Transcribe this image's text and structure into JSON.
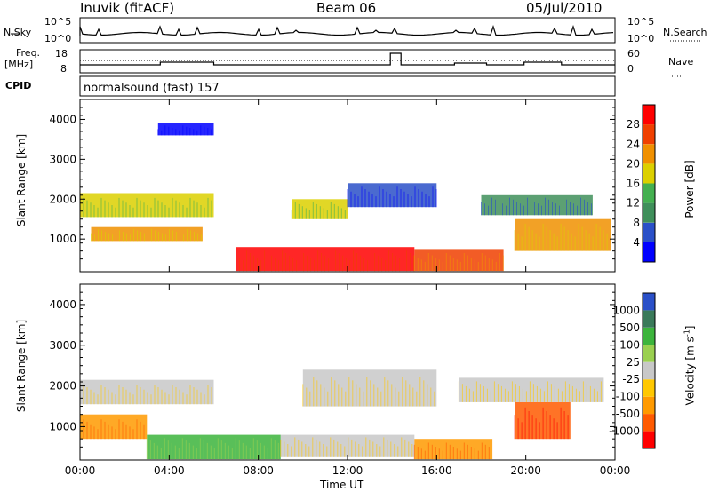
{
  "header": {
    "station": "Inuvik (fitACF)",
    "beam": "Beam 06",
    "date": "05/Jul/2010"
  },
  "labels": {
    "nsky": "N.Sky",
    "nsearch": "N.Search",
    "freq_line1": "Freq.",
    "freq_line2": "[MHz]",
    "nave": "Nave",
    "cpid": "CPID",
    "cpid_value": "normalsound (fast) 157",
    "ylabel": "Slant Range [km]",
    "xlabel": "Time UT",
    "power_label": "Power [dB]",
    "velocity_label_main": "Velocity [m s",
    "velocity_label_sup": "-1",
    "velocity_label_end": "]"
  },
  "noise_panel": {
    "left_ticks": [
      "10^5",
      "10^0"
    ],
    "right_ticks": [
      "10^5",
      "10^0"
    ]
  },
  "freq_panel": {
    "left_ticks": [
      "18",
      "8"
    ],
    "right_ticks": [
      "60",
      "0"
    ]
  },
  "colors": {
    "power": [
      "#0000ff",
      "#2a50c8",
      "#3f8f5a",
      "#44b050",
      "#dcd000",
      "#f09000",
      "#f04000",
      "#ff0000"
    ],
    "velocity": [
      "#ff0000",
      "#ff5a00",
      "#ff9a00",
      "#ffc800",
      "#c8c8c8",
      "#9ad050",
      "#3cb43c",
      "#3a7a5a",
      "#2a50c8"
    ]
  },
  "chart_data": [
    {
      "type": "heatmap",
      "quantity": "Power",
      "ylabel": "Slant Range [km]",
      "xlabel": "Time UT",
      "x_ticks": [
        "00:00",
        "04:00",
        "08:00",
        "12:00",
        "16:00",
        "20:00",
        "00:00"
      ],
      "y_ticks": [
        1000,
        2000,
        3000,
        4000
      ],
      "ylim": [
        180,
        4500
      ],
      "colorbar": {
        "label": "Power [dB]",
        "ticks": [
          4,
          8,
          12,
          16,
          20,
          24,
          28
        ]
      },
      "bands": [
        {
          "t0": 0.0,
          "t1": 6.0,
          "r0": 1550,
          "r1": 2150,
          "level": 4
        },
        {
          "t0": 0.5,
          "t1": 5.5,
          "r0": 950,
          "r1": 1300,
          "level": 5
        },
        {
          "t0": 7.0,
          "t1": 15.0,
          "r0": 200,
          "r1": 800,
          "level": 7
        },
        {
          "t0": 9.5,
          "t1": 12.0,
          "r0": 1500,
          "r1": 2000,
          "level": 4
        },
        {
          "t0": 15.0,
          "t1": 19.0,
          "r0": 200,
          "r1": 750,
          "level": 6
        },
        {
          "t0": 19.5,
          "t1": 23.8,
          "r0": 700,
          "r1": 1500,
          "level": 5
        },
        {
          "t0": 3.5,
          "t1": 6.0,
          "r0": 3600,
          "r1": 3900,
          "level": 0
        },
        {
          "t0": 12.0,
          "t1": 16.0,
          "r0": 1800,
          "r1": 2400,
          "level": 1
        },
        {
          "t0": 18.0,
          "t1": 23.0,
          "r0": 1600,
          "r1": 2100,
          "level": 2
        }
      ]
    },
    {
      "type": "heatmap",
      "quantity": "Velocity",
      "ylabel": "Slant Range [km]",
      "xlabel": "Time UT",
      "x_ticks": [
        "00:00",
        "04:00",
        "08:00",
        "12:00",
        "16:00",
        "20:00",
        "00:00"
      ],
      "y_ticks": [
        1000,
        2000,
        3000,
        4000
      ],
      "ylim": [
        180,
        4500
      ],
      "colorbar": {
        "label": "Velocity [m s-1]",
        "ticks": [
          1000,
          500,
          100,
          25,
          -25,
          -100,
          -500,
          -1000
        ]
      },
      "bands": [
        {
          "t0": 0.0,
          "t1": 6.0,
          "r0": 1550,
          "r1": 2150,
          "level": 4
        },
        {
          "t0": 0.0,
          "t1": 3.0,
          "r0": 700,
          "r1": 1300,
          "level": 2
        },
        {
          "t0": 3.0,
          "t1": 9.0,
          "r0": 200,
          "r1": 800,
          "level": 6
        },
        {
          "t0": 9.0,
          "t1": 15.0,
          "r0": 250,
          "r1": 800,
          "level": 4
        },
        {
          "t0": 15.0,
          "t1": 18.5,
          "r0": 200,
          "r1": 700,
          "level": 2
        },
        {
          "t0": 19.5,
          "t1": 22.0,
          "r0": 700,
          "r1": 1600,
          "level": 1
        },
        {
          "t0": 10.0,
          "t1": 16.0,
          "r0": 1500,
          "r1": 2400,
          "level": 4
        },
        {
          "t0": 17.0,
          "t1": 23.5,
          "r0": 1600,
          "r1": 2200,
          "level": 4
        }
      ]
    }
  ]
}
